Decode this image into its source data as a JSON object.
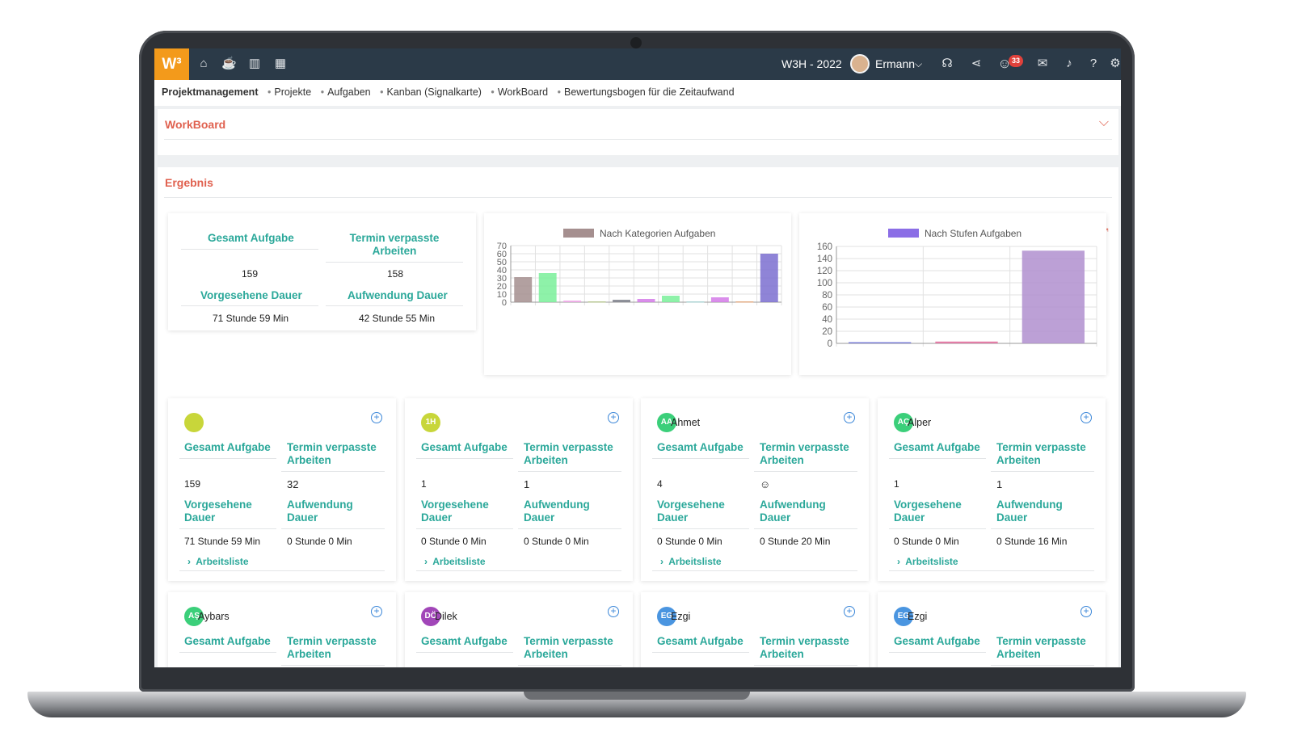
{
  "topbar": {
    "logo": "W³",
    "project": "W3H - 2022",
    "user": "Ermann",
    "notification_count": "33",
    "nav_icons": [
      "home-icon",
      "coffee-icon",
      "chart-icon",
      "calendar-icon"
    ],
    "right_icons": [
      "headset-icon",
      "share-icon",
      "smiley-icon",
      "chat-icon",
      "bell-icon",
      "help-icon",
      "gear-icon"
    ]
  },
  "breadcrumb": {
    "items": [
      "Projektmanagement",
      "Projekte",
      "Aufgaben",
      "Kanban (Signalkarte)",
      "WorkBoard",
      "Bewertungsbogen für die Zeitaufwand"
    ]
  },
  "workboard": {
    "title": "WorkBoard"
  },
  "result": {
    "title": "Ergebnis",
    "summary": {
      "h_total": "Gesamt Aufgabe",
      "h_missed": "Termin verpasste Arbeiten",
      "v_total": "159",
      "v_missed": "158",
      "h_planned": "Vorgesehene Dauer",
      "h_spent": "Aufwendung Dauer",
      "v_planned": "71 Stunde 59 Min",
      "v_spent": "42 Stunde 55 Min"
    }
  },
  "chart_data": [
    {
      "type": "bar",
      "legend": "Nach Kategorien Aufgaben",
      "legend_color": "#a58f8f",
      "ylim": [
        0,
        70
      ],
      "yticks": [
        0,
        10,
        20,
        30,
        40,
        50,
        60,
        70
      ],
      "values": [
        31,
        36,
        2,
        1,
        3,
        4,
        8,
        1,
        6,
        1,
        60
      ],
      "colors": [
        "#a58f8f",
        "#7af09a",
        "#f0a6e8",
        "#b7c98c",
        "#7c7f8a",
        "#d47ae8",
        "#7af09a",
        "#a8d8d8",
        "#d47ae8",
        "#e8a87a",
        "#7b6fd0"
      ]
    },
    {
      "type": "bar",
      "legend": "Nach Stufen Aufgaben",
      "legend_color": "#8b6ee6",
      "ylim": [
        0,
        160
      ],
      "yticks": [
        0,
        20,
        40,
        60,
        80,
        100,
        120,
        140,
        160
      ],
      "values": [
        2,
        3,
        153
      ],
      "colors": [
        "#6a6fd6",
        "#e06a9a",
        "#b08fcf"
      ]
    }
  ],
  "labels": {
    "total": "Gesamt Aufgabe",
    "missed": "Termin verpasste Arbeiten",
    "planned": "Vorgesehene Dauer",
    "spent": "Aufwendung Dauer",
    "worklist": "Arbeitsliste"
  },
  "members": [
    {
      "initials": "",
      "name": "",
      "color": "#c8d63a",
      "total": "159",
      "missed": "32",
      "planned": "71 Stunde 59 Min",
      "spent": "0 Stunde 0 Min"
    },
    {
      "initials": "1H",
      "name": "",
      "color": "#c8d63a",
      "total": "1",
      "missed": "1",
      "planned": "0 Stunde 0 Min",
      "spent": "0 Stunde 0 Min"
    },
    {
      "initials": "AA",
      "name": "Ahmet",
      "color": "#3bcf7a",
      "total": "4",
      "missed": "☺",
      "planned": "0 Stunde 0 Min",
      "spent": "0 Stunde 20 Min"
    },
    {
      "initials": "AÇ",
      "name": "Alper",
      "color": "#3bcf7a",
      "total": "1",
      "missed": "1",
      "planned": "0 Stunde 0 Min",
      "spent": "0 Stunde 16 Min"
    },
    {
      "initials": "AŞ",
      "name": "Aybars",
      "color": "#3bcf7a"
    },
    {
      "initials": "DÖ",
      "name": "Dilek",
      "color": "#a146b8"
    },
    {
      "initials": "EG",
      "name": "Ezgi",
      "color": "#4a95e0"
    },
    {
      "initials": "EG",
      "name": "Ezgi",
      "color": "#4a95e0"
    }
  ]
}
